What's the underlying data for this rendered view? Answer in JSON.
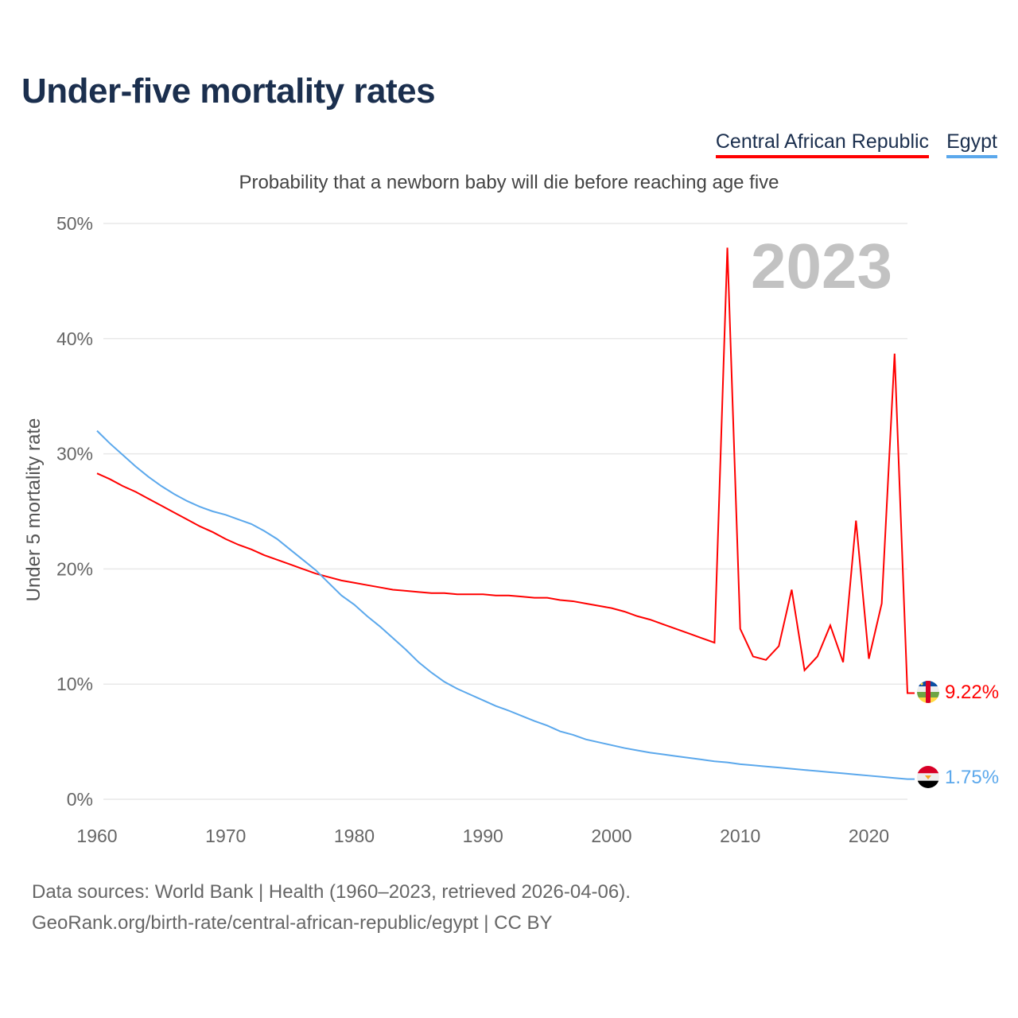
{
  "title": "Under-five mortality rates",
  "legend": [
    {
      "label": "Central African Republic",
      "color": "#ff0000"
    },
    {
      "label": "Egypt",
      "color": "#5ba8ec"
    }
  ],
  "subtitle": "Probability that a newborn baby will die before reaching age five",
  "year_label": "2023",
  "footer": {
    "line1": "Data sources: World Bank | Health (1960–2023, retrieved 2026-04-06).",
    "line2": "GeoRank.org/birth-rate/central-african-republic/egypt | CC BY"
  },
  "chart_data": {
    "type": "line",
    "title": "Under-five mortality rates",
    "subtitle": "Probability that a newborn baby will die before reaching age five",
    "xlabel": "",
    "ylabel": "Under 5 mortality rate",
    "xlim": [
      1960,
      2023
    ],
    "ylim": [
      0,
      50
    ],
    "x_ticks": [
      1960,
      1970,
      1980,
      1990,
      2000,
      2010,
      2020
    ],
    "x_tick_labels": [
      "1960",
      "1970",
      "1980",
      "1990",
      "2000",
      "2010",
      "2020"
    ],
    "y_ticks": [
      0,
      10,
      20,
      30,
      40,
      50
    ],
    "y_tick_labels": [
      "0%",
      "10%",
      "20%",
      "30%",
      "40%",
      "50%"
    ],
    "grid": true,
    "legend_position": "top-right",
    "x": [
      1960,
      1961,
      1962,
      1963,
      1964,
      1965,
      1966,
      1967,
      1968,
      1969,
      1970,
      1971,
      1972,
      1973,
      1974,
      1975,
      1976,
      1977,
      1978,
      1979,
      1980,
      1981,
      1982,
      1983,
      1984,
      1985,
      1986,
      1987,
      1988,
      1989,
      1990,
      1991,
      1992,
      1993,
      1994,
      1995,
      1996,
      1997,
      1998,
      1999,
      2000,
      2001,
      2002,
      2003,
      2004,
      2005,
      2006,
      2007,
      2008,
      2009,
      2010,
      2011,
      2012,
      2013,
      2014,
      2015,
      2016,
      2017,
      2018,
      2019,
      2020,
      2021,
      2022,
      2023
    ],
    "series": [
      {
        "name": "Central African Republic",
        "color": "#ff0000",
        "end_label": "9.22%",
        "values": [
          28.3,
          27.8,
          27.2,
          26.7,
          26.1,
          25.5,
          24.9,
          24.3,
          23.7,
          23.2,
          22.6,
          22.1,
          21.7,
          21.2,
          20.8,
          20.4,
          20.0,
          19.6,
          19.3,
          19.0,
          18.8,
          18.6,
          18.4,
          18.2,
          18.1,
          18.0,
          17.9,
          17.9,
          17.8,
          17.8,
          17.8,
          17.7,
          17.7,
          17.6,
          17.5,
          17.5,
          17.3,
          17.2,
          17.0,
          16.8,
          16.6,
          16.3,
          15.9,
          15.6,
          15.2,
          14.8,
          14.4,
          14.0,
          13.6,
          47.9,
          14.8,
          12.4,
          12.1,
          13.3,
          18.2,
          11.2,
          12.4,
          15.1,
          11.9,
          24.2,
          12.2,
          17.0,
          38.7,
          9.22
        ]
      },
      {
        "name": "Egypt",
        "color": "#5ba8ec",
        "end_label": "1.75%",
        "values": [
          32.0,
          30.9,
          29.9,
          28.9,
          28.0,
          27.2,
          26.5,
          25.9,
          25.4,
          25.0,
          24.7,
          24.3,
          23.9,
          23.3,
          22.6,
          21.7,
          20.8,
          19.9,
          18.8,
          17.7,
          16.9,
          15.9,
          15.0,
          14.0,
          13.0,
          11.9,
          11.0,
          10.2,
          9.6,
          9.1,
          8.6,
          8.1,
          7.7,
          7.25,
          6.8,
          6.4,
          5.9,
          5.6,
          5.2,
          4.95,
          4.7,
          4.45,
          4.25,
          4.05,
          3.9,
          3.75,
          3.6,
          3.45,
          3.3,
          3.2,
          3.05,
          2.95,
          2.85,
          2.75,
          2.65,
          2.55,
          2.45,
          2.35,
          2.25,
          2.15,
          2.05,
          1.95,
          1.85,
          1.75
        ]
      }
    ]
  }
}
